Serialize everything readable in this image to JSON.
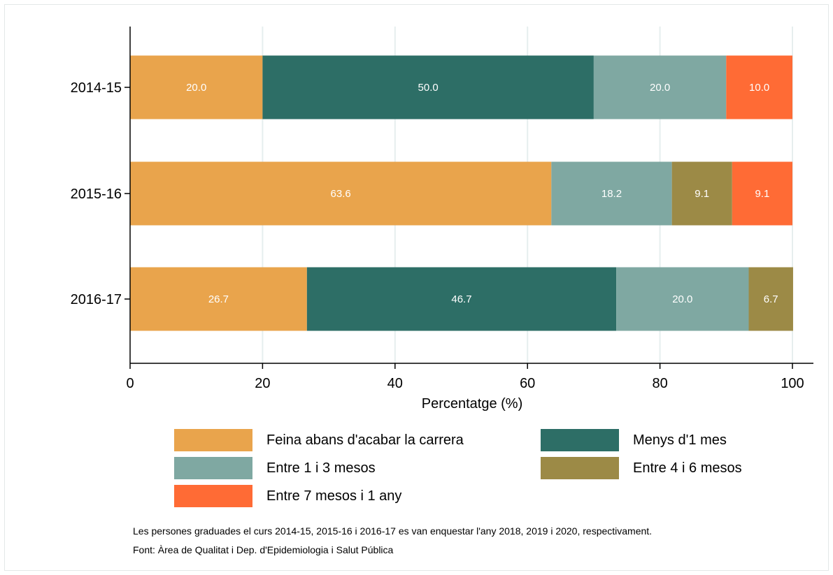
{
  "chart_data": {
    "type": "bar",
    "orientation": "horizontal",
    "stacked": true,
    "categories": [
      "2014-15",
      "2015-16",
      "2016-17"
    ],
    "series": [
      {
        "name": "Feina abans d'acabar la carrera",
        "values": [
          20.0,
          63.6,
          26.7
        ],
        "labels": [
          "20.0",
          "63.6",
          "26.7"
        ],
        "color": "#E9A44C"
      },
      {
        "name": "Menys d'1 mes",
        "values": [
          50.0,
          0,
          46.7
        ],
        "labels": [
          "50.0",
          "",
          "46.7"
        ],
        "color": "#2D6E66"
      },
      {
        "name": "Entre 1 i 3 mesos",
        "values": [
          20.0,
          18.2,
          20.0
        ],
        "labels": [
          "20.0",
          "18.2",
          "20.0"
        ],
        "color": "#7FA8A2"
      },
      {
        "name": "Entre 4 i 6 mesos",
        "values": [
          0,
          9.1,
          6.7
        ],
        "labels": [
          "",
          "9.1",
          "6.7"
        ],
        "color": "#9C8A46"
      },
      {
        "name": "Entre 7 mesos i 1 any",
        "values": [
          10.0,
          9.1,
          0
        ],
        "labels": [
          "10.0",
          "9.1",
          ""
        ],
        "color": "#FF6B35"
      }
    ],
    "xlabel": "Percentatge (%)",
    "ylabel": "",
    "xlim": [
      0,
      100
    ],
    "xticks": [
      "0",
      "20",
      "40",
      "60",
      "80",
      "100"
    ],
    "grid": true,
    "legend_position": "bottom"
  },
  "notes": {
    "line1": "Les persones graduades el curs 2014-15, 2015-16 i 2016-17 es van enquestar l'any 2018, 2019 i 2020, respectivament.",
    "line2": "Font: Àrea de Qualitat i Dep. d'Epidemiologia i Salut Pública"
  }
}
